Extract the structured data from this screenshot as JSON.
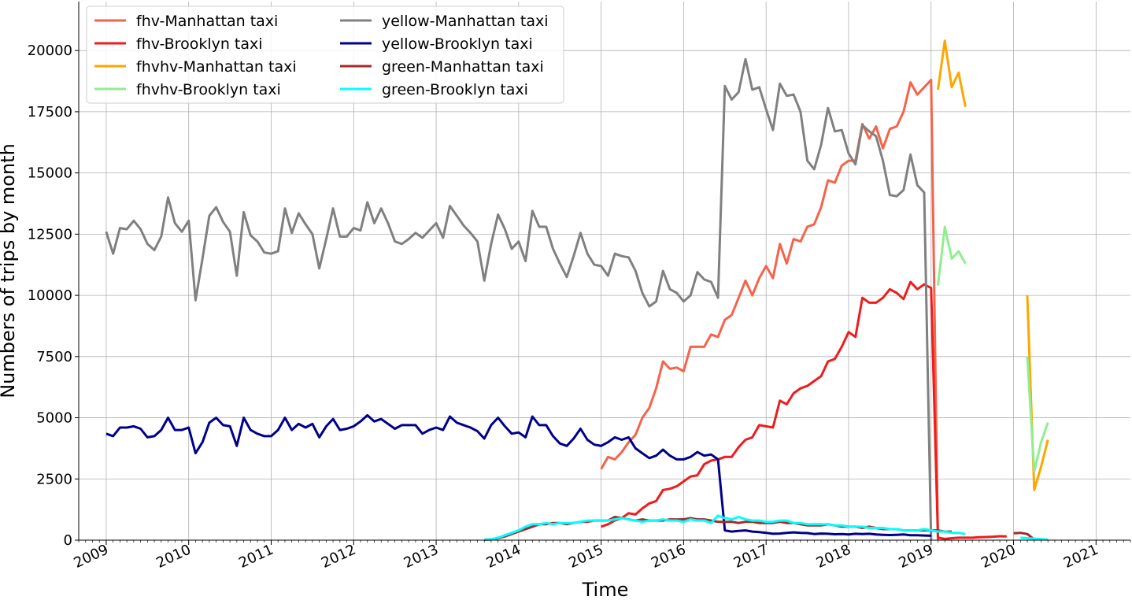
{
  "chart_data": {
    "type": "line",
    "xlabel": "Time",
    "ylabel": "Numbers of trips by month",
    "xlim": [
      "2008-09",
      "2021-06"
    ],
    "ylim": [
      0,
      22000
    ],
    "x_ticks": [
      "2009",
      "2010",
      "2011",
      "2012",
      "2013",
      "2014",
      "2015",
      "2016",
      "2017",
      "2018",
      "2019",
      "2020",
      "2021"
    ],
    "y_ticks": [
      0,
      2500,
      5000,
      7500,
      10000,
      12500,
      15000,
      17500,
      20000
    ],
    "grid": true,
    "legend_position": "top-left",
    "legend_columns": 2,
    "series": [
      {
        "name": "fhv-Manhattan taxi",
        "color": "#F5634A",
        "start": "2015-01",
        "values": [
          2900,
          3400,
          3300,
          3600,
          4000,
          4300,
          5000,
          5400,
          6200,
          7300,
          7000,
          7050,
          6900,
          7900,
          7900,
          7900,
          8400,
          8300,
          9000,
          9200,
          9900,
          10600,
          10000,
          10700,
          11200,
          10700,
          12100,
          11300,
          12300,
          12200,
          12800,
          12900,
          13600,
          14700,
          14600,
          15300,
          15500,
          15500,
          17000,
          16400,
          16900,
          16000,
          16800,
          16900,
          17500,
          18700,
          18200,
          18500,
          18800,
          0
        ]
      },
      {
        "name": "fhv-Brooklyn taxi",
        "color": "#EE1C1C",
        "start": "2015-01",
        "values": [
          550,
          650,
          800,
          900,
          1100,
          1050,
          1300,
          1500,
          1600,
          2050,
          2100,
          2200,
          2400,
          2600,
          2650,
          3100,
          3250,
          3300,
          3400,
          3400,
          3800,
          4100,
          4200,
          4700,
          4650,
          4600,
          5700,
          5550,
          6000,
          6200,
          6300,
          6500,
          6700,
          7300,
          7400,
          7900,
          8500,
          8300,
          9900,
          9700,
          9700,
          9900,
          10250,
          10100,
          9850,
          10550,
          10250,
          10450,
          10300,
          100,
          50,
          80,
          100,
          100,
          100,
          120,
          130,
          140,
          160,
          150
        ]
      },
      {
        "name": "fhvhv-Manhattan taxi",
        "color": "#FFA500",
        "start": "2019-02",
        "values": [
          18400,
          20400,
          18500,
          19100,
          17700
        ],
        "segments": [
          {
            "start": "2020-03",
            "values": [
              10000,
              2050,
              3000,
              4100
            ]
          }
        ]
      },
      {
        "name": "fhvhv-Brooklyn taxi",
        "color": "#90EE90",
        "start": "2019-02",
        "values": [
          10400,
          12800,
          11500,
          11800,
          11300
        ],
        "segments": [
          {
            "start": "2020-03",
            "values": [
              7500,
              2800,
              4000,
              4800
            ]
          }
        ]
      },
      {
        "name": "yellow-Manhattan taxi",
        "color": "#808080",
        "start": "2009-01",
        "values": [
          12600,
          11700,
          12750,
          12700,
          13050,
          12700,
          12100,
          11850,
          12400,
          14000,
          12950,
          12600,
          13050,
          9800,
          11500,
          13250,
          13600,
          13000,
          12600,
          10800,
          13400,
          12450,
          12200,
          11750,
          11700,
          11800,
          13550,
          12550,
          13350,
          12900,
          12500,
          11100,
          12300,
          13550,
          12400,
          12400,
          12750,
          12650,
          13800,
          12950,
          13550,
          12950,
          12200,
          12100,
          12300,
          12550,
          12350,
          12650,
          12950,
          12350,
          13650,
          13250,
          12850,
          12550,
          12200,
          10600,
          12100,
          13300,
          12700,
          11900,
          12200,
          11400,
          13450,
          12800,
          12800,
          11900,
          11300,
          10750,
          11600,
          12550,
          11700,
          11250,
          11200,
          10800,
          11700,
          11600,
          11550,
          11000,
          10100,
          9550,
          9750,
          11000,
          10250,
          10100,
          9750,
          10000,
          10950,
          10650,
          10550,
          9900,
          18550,
          18000,
          18300,
          19650,
          18400,
          18500,
          17600,
          16750,
          18650,
          18150,
          18200,
          17500,
          15500,
          15150,
          16150,
          17650,
          16700,
          16750,
          15800,
          15350,
          16950,
          16700,
          16500,
          15500,
          14100,
          14050,
          14300,
          15750,
          14500,
          14200,
          0
        ]
      },
      {
        "name": "yellow-Brooklyn taxi",
        "color": "#00008B",
        "start": "2009-01",
        "values": [
          4350,
          4250,
          4600,
          4600,
          4650,
          4550,
          4200,
          4250,
          4500,
          5000,
          4500,
          4500,
          4600,
          3550,
          4000,
          4800,
          5000,
          4700,
          4650,
          3850,
          5000,
          4500,
          4350,
          4250,
          4250,
          4500,
          5000,
          4500,
          4750,
          4600,
          4750,
          4200,
          4650,
          4950,
          4500,
          4550,
          4650,
          4850,
          5100,
          4850,
          4950,
          4750,
          4550,
          4700,
          4700,
          4700,
          4350,
          4500,
          4600,
          4500,
          5050,
          4800,
          4700,
          4600,
          4450,
          4150,
          4700,
          5000,
          4650,
          4350,
          4400,
          4200,
          5050,
          4700,
          4700,
          4250,
          3950,
          3850,
          4150,
          4550,
          4100,
          3900,
          3850,
          4000,
          4200,
          4100,
          4200,
          3750,
          3550,
          3350,
          3450,
          3700,
          3450,
          3300,
          3300,
          3400,
          3600,
          3450,
          3500,
          3300,
          400,
          350,
          380,
          400,
          350,
          330,
          300,
          260,
          270,
          300,
          320,
          300,
          290,
          250,
          270,
          260,
          240,
          250,
          230,
          260,
          250,
          260,
          230,
          220,
          210,
          220,
          230,
          200,
          200,
          190,
          180
        ]
      },
      {
        "name": "green-Manhattan taxi",
        "color": "#A52A2A",
        "start": "2013-08",
        "values": [
          20,
          30,
          80,
          150,
          250,
          350,
          450,
          550,
          650,
          650,
          700,
          700,
          650,
          700,
          750,
          750,
          800,
          800,
          800,
          950,
          900,
          850,
          800,
          850,
          800,
          800,
          800,
          850,
          850,
          850,
          900,
          850,
          850,
          800,
          750,
          750,
          750,
          700,
          750,
          750,
          700,
          700,
          700,
          750,
          700,
          700,
          650,
          600,
          600,
          600,
          650,
          600,
          550,
          550,
          550,
          500,
          550,
          500,
          450,
          450,
          450,
          400,
          400,
          400,
          400,
          400,
          400,
          350,
          350
        ],
        "segments": [
          {
            "start": "2020-01",
            "values": [
              280,
              300,
              250,
              30,
              40
            ]
          }
        ]
      },
      {
        "name": "green-Brooklyn taxi",
        "color": "#00FFFF",
        "start": "2013-08",
        "values": [
          20,
          40,
          100,
          200,
          300,
          400,
          550,
          650,
          650,
          700,
          650,
          700,
          700,
          700,
          750,
          800,
          800,
          800,
          800,
          850,
          900,
          850,
          800,
          750,
          800,
          800,
          850,
          800,
          800,
          750,
          850,
          800,
          800,
          700,
          1000,
          900,
          850,
          950,
          850,
          800,
          800,
          750,
          750,
          800,
          800,
          700,
          700,
          650,
          650,
          650,
          650,
          600,
          600,
          550,
          550,
          550,
          500,
          500,
          500,
          450,
          450,
          400,
          400,
          400,
          450,
          400,
          350,
          350,
          300,
          300,
          250
        ],
        "segments": [
          {
            "start": "2020-02",
            "values": [
              100,
              80,
              60,
              40,
              30
            ]
          }
        ]
      }
    ]
  }
}
